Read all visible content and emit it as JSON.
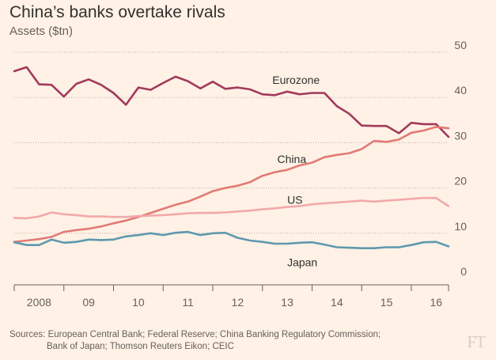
{
  "header": {
    "title": "China’s banks overtake rivals",
    "subtitle": "Assets ($tn)"
  },
  "footer": {
    "source_line1": "Sources: European Central Bank; Federal Reserve; China Banking Regulatory Commission;",
    "source_line2": "Bank of Japan; Thomson Reuters Eikon; CEIC",
    "logo": "FT"
  },
  "chart_data": {
    "type": "line",
    "title": "China’s banks overtake rivals",
    "subtitle": "Assets ($tn)",
    "xlabel": "",
    "ylabel": "",
    "ylim": [
      0,
      50
    ],
    "yticks": [
      0,
      10,
      20,
      30,
      40,
      50
    ],
    "y_axis_side": "right",
    "grid": "horizontal-dotted",
    "xlim": [
      2008.0,
      2016.75
    ],
    "xticks": [
      {
        "label": "2008",
        "center": 2008.5
      },
      {
        "label": "09",
        "center": 2009.5
      },
      {
        "label": "10",
        "center": 2010.5
      },
      {
        "label": "11",
        "center": 2011.5
      },
      {
        "label": "12",
        "center": 2012.5
      },
      {
        "label": "13",
        "center": 2013.5
      },
      {
        "label": "14",
        "center": 2014.5
      },
      {
        "label": "15",
        "center": 2015.5
      },
      {
        "label": "16",
        "center": 2016.5
      }
    ],
    "x": [
      2008.0,
      2008.25,
      2008.5,
      2008.75,
      2009.0,
      2009.25,
      2009.5,
      2009.75,
      2010.0,
      2010.25,
      2010.5,
      2010.75,
      2011.0,
      2011.25,
      2011.5,
      2011.75,
      2012.0,
      2012.25,
      2012.5,
      2012.75,
      2013.0,
      2013.25,
      2013.5,
      2013.75,
      2014.0,
      2014.25,
      2014.5,
      2014.75,
      2015.0,
      2015.25,
      2015.5,
      2015.75,
      2016.0,
      2016.25,
      2016.5,
      2016.75
    ],
    "series": [
      {
        "name": "Eurozone",
        "color": "#a2395b",
        "label_at": [
          2013.2,
          43
        ],
        "values": [
          45.8,
          46.7,
          42.9,
          42.8,
          40.2,
          43.0,
          44.0,
          42.8,
          41.0,
          38.4,
          42.2,
          41.7,
          43.2,
          44.6,
          43.6,
          42.0,
          43.5,
          41.9,
          42.2,
          41.8,
          40.7,
          40.5,
          41.3,
          40.7,
          41.0,
          41.0,
          38.1,
          36.4,
          33.8,
          33.7,
          33.7,
          32.1,
          34.4,
          34.1,
          34.1,
          31.3
        ]
      },
      {
        "name": "China",
        "color": "#e17b75",
        "label_at": [
          2013.3,
          25.5
        ],
        "values": [
          8.1,
          8.4,
          8.7,
          9.2,
          10.3,
          10.7,
          11.0,
          11.5,
          12.2,
          12.8,
          13.6,
          14.5,
          15.4,
          16.3,
          17.0,
          18.1,
          19.3,
          20.0,
          20.5,
          21.3,
          22.7,
          23.5,
          24.0,
          25.0,
          25.6,
          26.8,
          27.3,
          27.7,
          28.6,
          30.4,
          30.2,
          30.7,
          32.2,
          32.7,
          33.5,
          33.2
        ]
      },
      {
        "name": "US",
        "color": "#f2a9a9",
        "label_at": [
          2013.5,
          16.5
        ],
        "values": [
          13.4,
          13.3,
          13.7,
          14.6,
          14.2,
          14.0,
          13.7,
          13.7,
          13.6,
          13.6,
          13.8,
          13.9,
          14.0,
          14.2,
          14.4,
          14.5,
          14.5,
          14.6,
          14.8,
          15.0,
          15.3,
          15.5,
          15.8,
          16.0,
          16.4,
          16.6,
          16.8,
          17.0,
          17.2,
          17.0,
          17.2,
          17.4,
          17.6,
          17.8,
          17.8,
          16.0
        ]
      },
      {
        "name": "Japan",
        "color": "#5e99ae",
        "label_at": [
          2013.5,
          2.7
        ],
        "values": [
          8.0,
          7.4,
          7.4,
          8.6,
          7.9,
          8.1,
          8.6,
          8.5,
          8.6,
          9.3,
          9.6,
          10.0,
          9.6,
          10.1,
          10.3,
          9.6,
          10.0,
          10.1,
          9.0,
          8.4,
          8.1,
          7.7,
          7.7,
          7.9,
          8.0,
          7.5,
          6.9,
          6.8,
          6.7,
          6.7,
          6.9,
          6.9,
          7.4,
          8.0,
          8.1,
          7.1
        ]
      }
    ],
    "annotations": [
      "Eurozone",
      "China",
      "US",
      "Japan"
    ]
  }
}
